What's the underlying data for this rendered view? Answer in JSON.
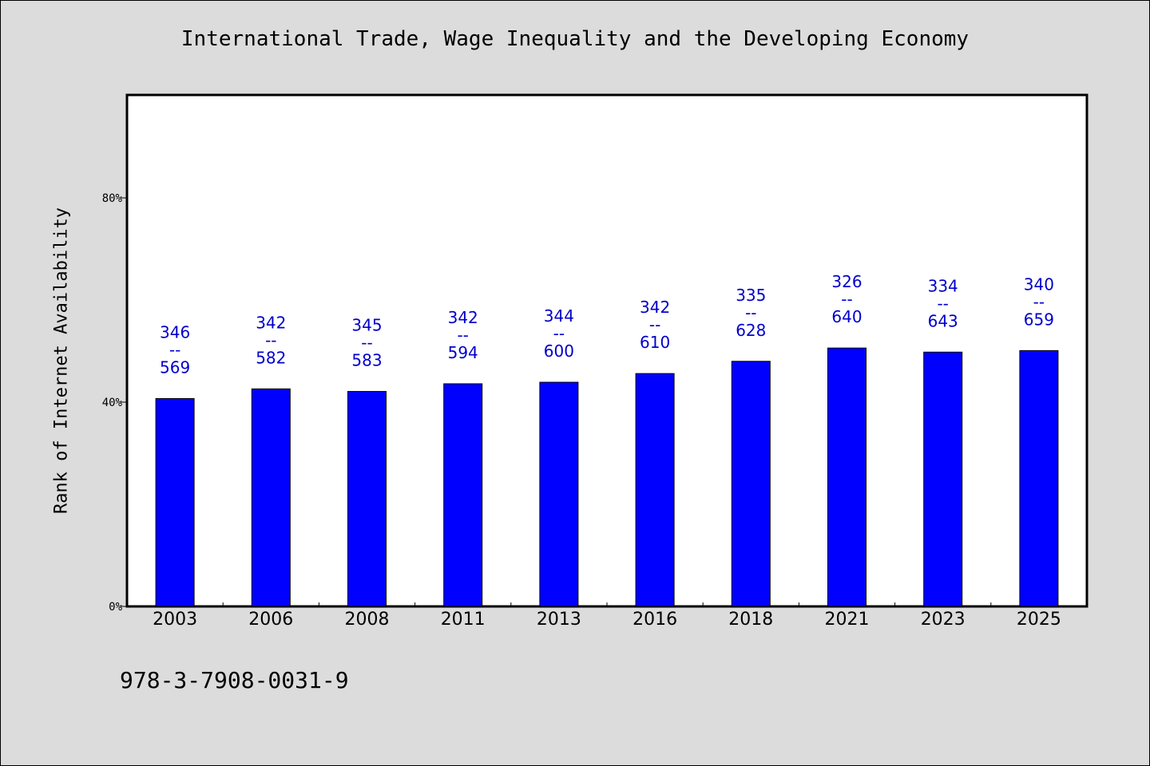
{
  "chart_data": {
    "type": "bar",
    "title": "International Trade, Wage Inequality and the Developing Economy",
    "ylabel": "Rank of Internet Availability",
    "xlabel": "",
    "categories": [
      "2003",
      "2006",
      "2008",
      "2011",
      "2013",
      "2016",
      "2018",
      "2021",
      "2023",
      "2025"
    ],
    "values": [
      40.7,
      42.6,
      42.1,
      43.6,
      43.9,
      45.6,
      48.0,
      50.6,
      49.8,
      50.1
    ],
    "value_labels": [
      [
        "346",
        "--",
        "569"
      ],
      [
        "342",
        "--",
        "582"
      ],
      [
        "345",
        "--",
        "583"
      ],
      [
        "342",
        "--",
        "594"
      ],
      [
        "344",
        "--",
        "600"
      ],
      [
        "342",
        "--",
        "610"
      ],
      [
        "335",
        "--",
        "628"
      ],
      [
        "326",
        "--",
        "640"
      ],
      [
        "334",
        "--",
        "643"
      ],
      [
        "340",
        "--",
        "659"
      ]
    ],
    "ylim": [
      0,
      100
    ],
    "yticks": [
      0,
      40,
      80
    ],
    "ytick_labels": [
      "0%",
      "40%",
      "80%"
    ],
    "bar_color": "#0000ff",
    "label_color": "#0000cc",
    "grid": false,
    "legend": "none"
  },
  "footer": {
    "text": "978-3-7908-0031-9"
  }
}
